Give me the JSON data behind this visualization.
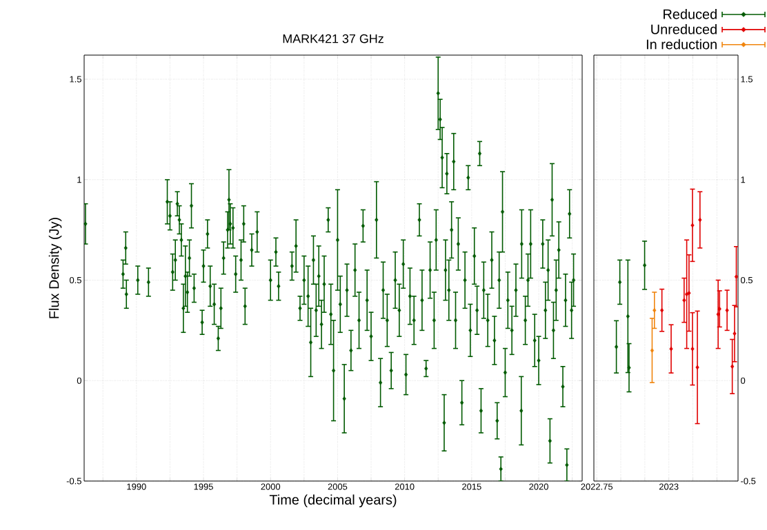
{
  "chart_data": [
    {
      "type": "scatter",
      "title": "MARK421 37 GHz",
      "xlabel": "Time (decimal years)",
      "ylabel": "Flux Density (Jy)",
      "marker": "diamond",
      "grid": true,
      "xlim": [
        1986.1,
        2023.24
      ],
      "ylim": [
        -0.5,
        1.62
      ],
      "xticks": [
        {
          "value": 1987.5,
          "label": null
        },
        1990,
        {
          "value": 1992.5,
          "label": null
        },
        1995,
        {
          "value": 1997.5,
          "label": null
        },
        2000,
        {
          "value": 2002.5,
          "label": null
        },
        2005,
        {
          "value": 2007.5,
          "label": null
        },
        2010,
        {
          "value": 2012.5,
          "label": null
        },
        2015,
        {
          "value": 2017.5,
          "label": null
        },
        2020,
        {
          "value": 2022.5,
          "label": null
        }
      ],
      "yticks": [
        -0.5,
        0,
        0.5,
        1,
        1.5
      ],
      "series": [
        {
          "color": "#005a00",
          "x": [
            1986.2,
            1989.0,
            1989.2,
            1989.25,
            1990.1,
            1990.9,
            1992.3,
            1992.5,
            1992.7,
            1992.9,
            1993.05,
            1993.2,
            1993.35,
            1993.5,
            1993.65,
            1993.8,
            1993.95,
            1994.1,
            1994.3,
            1994.9,
            1995.0,
            1995.3,
            1995.5,
            1995.8,
            1996.1,
            1996.3,
            1996.5,
            1996.8,
            1996.9,
            1997.0,
            1997.2,
            1997.4,
            1997.8,
            1998.0,
            1998.1,
            1998.6,
            1999.0,
            2000.0,
            2000.4,
            2000.6,
            2001.6,
            2001.9,
            2002.2,
            2002.5,
            2002.8,
            2003.0,
            2003.2,
            2003.4,
            2003.6,
            2003.8,
            2004.0,
            2004.3,
            2004.5,
            2004.7,
            2005.0,
            2005.2,
            2005.5,
            2005.7,
            2006.0,
            2006.3,
            2006.6,
            2006.9,
            2007.2,
            2007.5,
            2007.9,
            2008.2,
            2008.4,
            2008.7,
            2009.0,
            2009.3,
            2009.6,
            2009.9,
            2010.1,
            2010.4,
            2010.7,
            2011.1,
            2011.3,
            2011.6,
            2011.9,
            2012.2,
            2012.35,
            2012.5,
            2012.65,
            2012.8,
            2012.95,
            2013.05,
            2013.15,
            2013.3,
            2013.5,
            2013.66,
            2013.8,
            2014.0,
            2014.27,
            2014.5,
            2014.74,
            2014.9,
            2015.2,
            2015.4,
            2015.6,
            2015.7,
            2015.9,
            2016.2,
            2016.5,
            2016.7,
            2016.9,
            2017.05,
            2017.18,
            2017.3,
            2017.5,
            2017.7,
            2018.0,
            2018.3,
            2018.7,
            2018.73,
            2019.0,
            2019.2,
            2019.4,
            2019.7,
            2020.0,
            2020.3,
            2020.5,
            2020.7,
            2020.84,
            2021.0,
            2021.1,
            2021.3,
            2021.5,
            2021.8,
            2022.0,
            2022.1,
            2022.3,
            2022.45,
            2022.6
          ],
          "values": [
            0.78,
            0.53,
            0.66,
            0.43,
            0.5,
            0.49,
            0.89,
            0.82,
            0.54,
            0.6,
            0.88,
            0.8,
            0.7,
            0.36,
            0.52,
            0.44,
            0.61,
            0.87,
            0.46,
            0.29,
            0.57,
            0.73,
            0.47,
            0.38,
            0.21,
            0.36,
            0.61,
            0.75,
            0.9,
            0.78,
            0.76,
            0.53,
            0.6,
            0.78,
            0.37,
            0.65,
            0.74,
            0.5,
            0.64,
            0.47,
            0.57,
            0.67,
            0.36,
            0.5,
            0.42,
            0.19,
            0.6,
            0.35,
            0.52,
            0.28,
            0.48,
            0.8,
            0.33,
            0.05,
            0.7,
            0.38,
            -0.09,
            0.45,
            0.15,
            0.55,
            0.3,
            0.77,
            0.4,
            0.22,
            0.8,
            -0.01,
            0.45,
            0.3,
            0.05,
            0.5,
            0.35,
            0.58,
            0.03,
            0.42,
            0.3,
            0.8,
            0.4,
            0.06,
            0.55,
            0.3,
            0.7,
            1.43,
            1.3,
            1.11,
            -0.21,
            0.55,
            1.03,
            0.45,
            0.75,
            1.09,
            0.3,
            0.68,
            -0.11,
            0.5,
            1.01,
            0.25,
            0.62,
            0.35,
            1.13,
            -0.15,
            0.45,
            0.3,
            0.6,
            0.2,
            -0.2,
            0.5,
            -0.44,
            0.84,
            0.04,
            0.4,
            0.25,
            0.45,
            -0.15,
            0.68,
            0.3,
            0.5,
            0.68,
            0.2,
            0.1,
            0.68,
            0.35,
            0.55,
            -0.3,
            0.9,
            0.25,
            0.45,
            0.65,
            -0.03,
            0.4,
            -0.42,
            0.83,
            0.35,
            0.5
          ],
          "errors": [
            0.1,
            0.07,
            0.08,
            0.07,
            0.07,
            0.07,
            0.11,
            0.07,
            0.09,
            0.1,
            0.06,
            0.07,
            0.08,
            0.12,
            0.15,
            0.1,
            0.09,
            0.11,
            0.07,
            0.06,
            0.08,
            0.07,
            0.1,
            0.1,
            0.06,
            0.1,
            0.08,
            0.09,
            0.15,
            0.1,
            0.1,
            0.09,
            0.1,
            0.09,
            0.09,
            0.08,
            0.1,
            0.1,
            0.07,
            0.07,
            0.07,
            0.13,
            0.06,
            0.12,
            0.15,
            0.17,
            0.12,
            0.13,
            0.15,
            0.12,
            0.14,
            0.06,
            0.15,
            0.25,
            0.25,
            0.14,
            0.17,
            0.13,
            0.1,
            0.13,
            0.14,
            0.08,
            0.15,
            0.12,
            0.19,
            0.12,
            0.14,
            0.13,
            0.09,
            0.14,
            0.13,
            0.12,
            0.1,
            0.14,
            0.12,
            0.08,
            0.15,
            0.04,
            0.14,
            0.14,
            0.15,
            0.18,
            0.1,
            0.15,
            0.14,
            0.15,
            0.1,
            0.15,
            0.14,
            0.14,
            0.14,
            0.13,
            0.11,
            0.14,
            0.06,
            0.13,
            0.14,
            0.12,
            0.06,
            0.11,
            0.14,
            0.13,
            0.14,
            0.12,
            0.09,
            0.14,
            0.06,
            0.2,
            0.12,
            0.14,
            0.12,
            0.13,
            0.17,
            0.17,
            0.12,
            0.13,
            0.17,
            0.13,
            0.12,
            0.12,
            0.14,
            0.15,
            0.11,
            0.18,
            0.14,
            0.15,
            0.14,
            0.1,
            0.13,
            0.08,
            0.12,
            0.14,
            0.13
          ]
        }
      ]
    },
    {
      "type": "scatter",
      "marker": "diamond",
      "grid": true,
      "legend": "top right",
      "xlim": [
        2022.74,
        2023.24
      ],
      "ylim": [
        -0.5,
        1.62
      ],
      "xticks": [
        2022.75,
        {
          "value": 2022.8333,
          "label": null
        },
        {
          "value": 2022.9167,
          "label": null
        },
        2023,
        {
          "value": 2023.0833,
          "label": null
        },
        {
          "value": 2023.1667,
          "label": null
        }
      ],
      "yticks": [
        -0.5,
        0,
        0.5,
        1,
        1.5
      ],
      "series": [
        {
          "name": "Reduced",
          "color": "#005a00",
          "x": [
            2022.818,
            2022.83,
            2022.858,
            2022.862,
            2022.916
          ],
          "values": [
            0.168,
            0.49,
            0.32,
            0.064,
            0.574
          ],
          "errors": [
            0.13,
            0.11,
            0.28,
            0.12,
            0.12
          ]
        },
        {
          "name": "Unreduced",
          "color": "#e00000",
          "x": [
            2022.976,
            2023.008,
            2023.053,
            2023.062,
            2023.07,
            2023.082,
            2023.082,
            2023.099,
            2023.108,
            2023.171,
            2023.176,
            2023.202,
            2023.22,
            2023.228,
            2023.234
          ],
          "values": [
            0.35,
            0.158,
            0.4,
            0.43,
            0.436,
            0.773,
            0.158,
            0.066,
            0.8,
            0.33,
            0.357,
            0.35,
            0.07,
            0.234,
            0.517
          ],
          "errors": [
            0.105,
            0.12,
            0.11,
            0.27,
            0.19,
            0.18,
            0.18,
            0.28,
            0.14,
            0.17,
            0.09,
            0.1,
            0.135,
            0.14,
            0.15
          ]
        },
        {
          "name": "In reduction",
          "color": "#f0840c",
          "x": [
            2022.942,
            2022.95
          ],
          "values": [
            0.15,
            0.35
          ],
          "errors": [
            0.16,
            0.09
          ]
        }
      ]
    }
  ]
}
